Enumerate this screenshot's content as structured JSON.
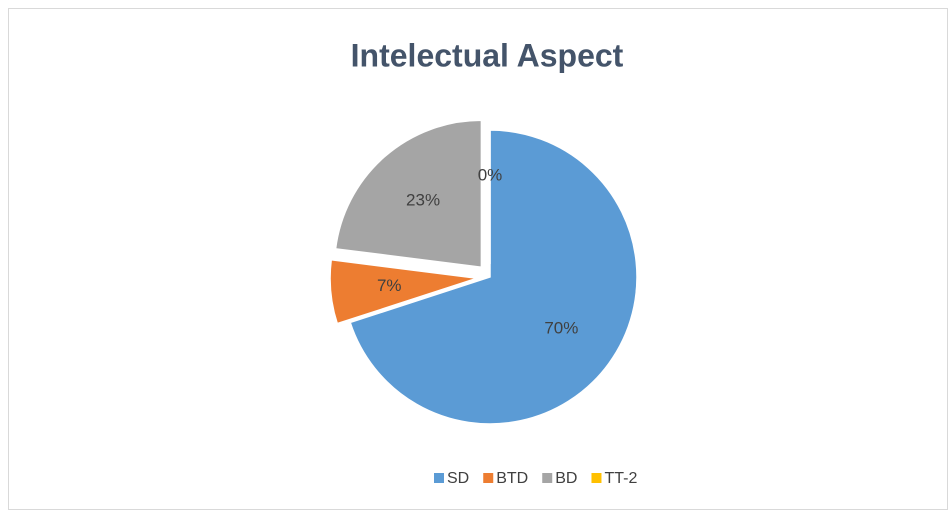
{
  "chart_data": {
    "type": "pie",
    "title": "Intelectual Aspect",
    "categories": [
      "SD",
      "BTD",
      "BD",
      "TT-2"
    ],
    "values": [
      70,
      7,
      23,
      0
    ],
    "value_labels": [
      "70%",
      "7%",
      "23%",
      "0%"
    ],
    "colors": [
      "#5b9bd5",
      "#ed7d31",
      "#a5a5a5",
      "#ffc000"
    ],
    "legend": "bottom"
  }
}
